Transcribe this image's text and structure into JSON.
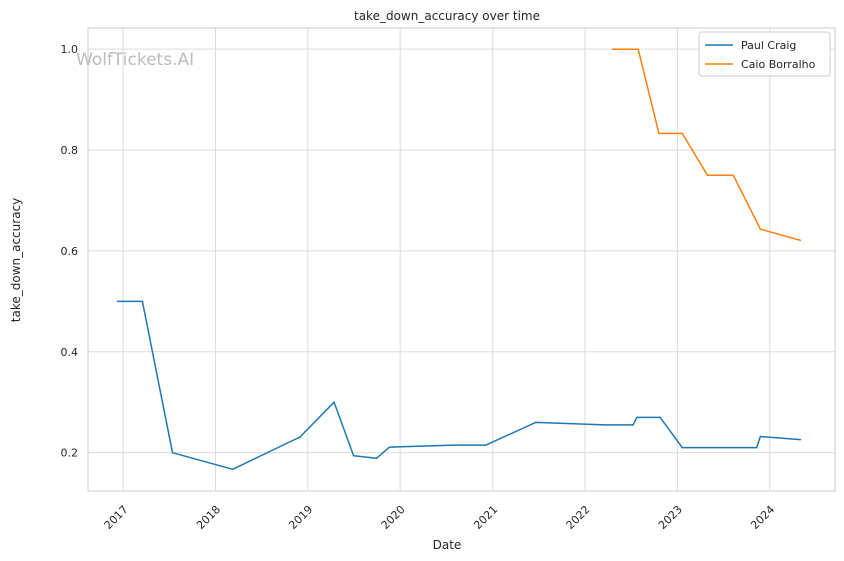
{
  "watermark": "WolfTickets.AI",
  "chart_data": {
    "type": "line",
    "title": "take_down_accuracy over time",
    "xlabel": "Date",
    "ylabel": "take_down_accuracy",
    "x_type": "date",
    "xlim": [
      "2016-08-15",
      "2024-09-15"
    ],
    "ylim": [
      0.124,
      1.042
    ],
    "x_ticks": [
      "2017-01-01",
      "2018-01-01",
      "2019-01-01",
      "2020-01-01",
      "2021-01-01",
      "2022-01-01",
      "2023-01-01",
      "2024-01-01"
    ],
    "x_tick_labels": [
      "2017",
      "2018",
      "2019",
      "2020",
      "2021",
      "2022",
      "2023",
      "2024"
    ],
    "y_ticks": [
      0.2,
      0.4,
      0.6,
      0.8,
      1.0
    ],
    "y_tick_labels": [
      "0.2",
      "0.4",
      "0.6",
      "0.8",
      "1.0"
    ],
    "grid": true,
    "legend_position": "top-right",
    "series": [
      {
        "name": "Paul Craig",
        "color": "#1f77b4",
        "points": [
          [
            "2016-12-10",
            0.5
          ],
          [
            "2017-03-18",
            0.5
          ],
          [
            "2017-07-15",
            0.2
          ],
          [
            "2018-03-10",
            0.167
          ],
          [
            "2018-12-01",
            0.231
          ],
          [
            "2019-04-15",
            0.3
          ],
          [
            "2019-07-01",
            0.194
          ],
          [
            "2019-09-30",
            0.189
          ],
          [
            "2019-11-20",
            0.211
          ],
          [
            "2020-08-01",
            0.215
          ],
          [
            "2020-12-05",
            0.215
          ],
          [
            "2021-06-20",
            0.26
          ],
          [
            "2022-03-20",
            0.255
          ],
          [
            "2022-07-10",
            0.255
          ],
          [
            "2022-07-25",
            0.27
          ],
          [
            "2022-10-25",
            0.27
          ],
          [
            "2023-01-20",
            0.21
          ],
          [
            "2023-11-10",
            0.21
          ],
          [
            "2023-11-25",
            0.232
          ],
          [
            "2024-05-01",
            0.226
          ]
        ]
      },
      {
        "name": "Caio Borralho",
        "color": "#ff7f0e",
        "points": [
          [
            "2022-04-20",
            1.0
          ],
          [
            "2022-07-30",
            1.0
          ],
          [
            "2022-10-20",
            0.833
          ],
          [
            "2023-01-20",
            0.833
          ],
          [
            "2023-04-30",
            0.75
          ],
          [
            "2023-08-10",
            0.75
          ],
          [
            "2023-11-25",
            0.643
          ],
          [
            "2024-05-01",
            0.621
          ]
        ]
      }
    ]
  }
}
